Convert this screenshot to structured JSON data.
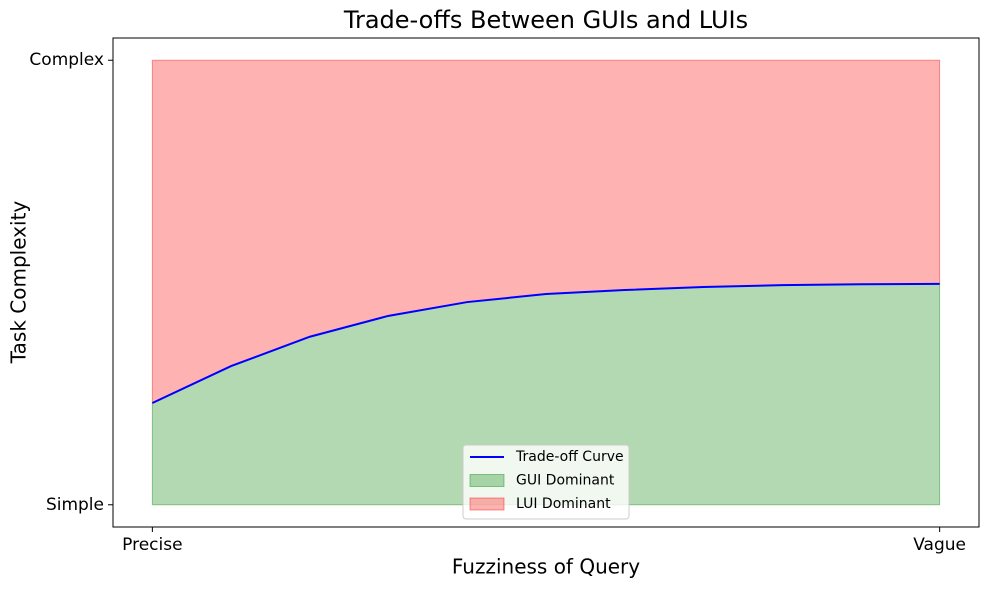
{
  "chart_data": {
    "type": "line",
    "title": "Trade-offs Between GUIs and LUIs",
    "x_label": "Fuzziness of Query",
    "y_label": "Task Complexity",
    "x": [
      0,
      1,
      2,
      3,
      4,
      5,
      6,
      7,
      8,
      9,
      10
    ],
    "series": [
      {
        "name": "Trade-off Curve",
        "color": "#0000ff",
        "values": [
          2.29,
          3.12,
          3.78,
          4.25,
          4.56,
          4.74,
          4.83,
          4.9,
          4.94,
          4.96,
          4.97
        ]
      },
      {
        "name": "GUI Dominant",
        "color": "#008000",
        "alpha": 0.3,
        "base": 0
      },
      {
        "name": "LUI Dominant",
        "color": "#ff0000",
        "alpha": 0.3,
        "base": 10
      }
    ],
    "xlim": [
      -0.5,
      10.5
    ],
    "ylim": [
      -0.5,
      10.5
    ],
    "xticks": [
      {
        "value": 0,
        "label": "Precise"
      },
      {
        "value": 10,
        "label": "Vague"
      }
    ],
    "yticks": [
      {
        "value": 0,
        "label": "Simple"
      },
      {
        "value": 10,
        "label": "Complex"
      }
    ],
    "legend": "lower center",
    "grid": false
  }
}
